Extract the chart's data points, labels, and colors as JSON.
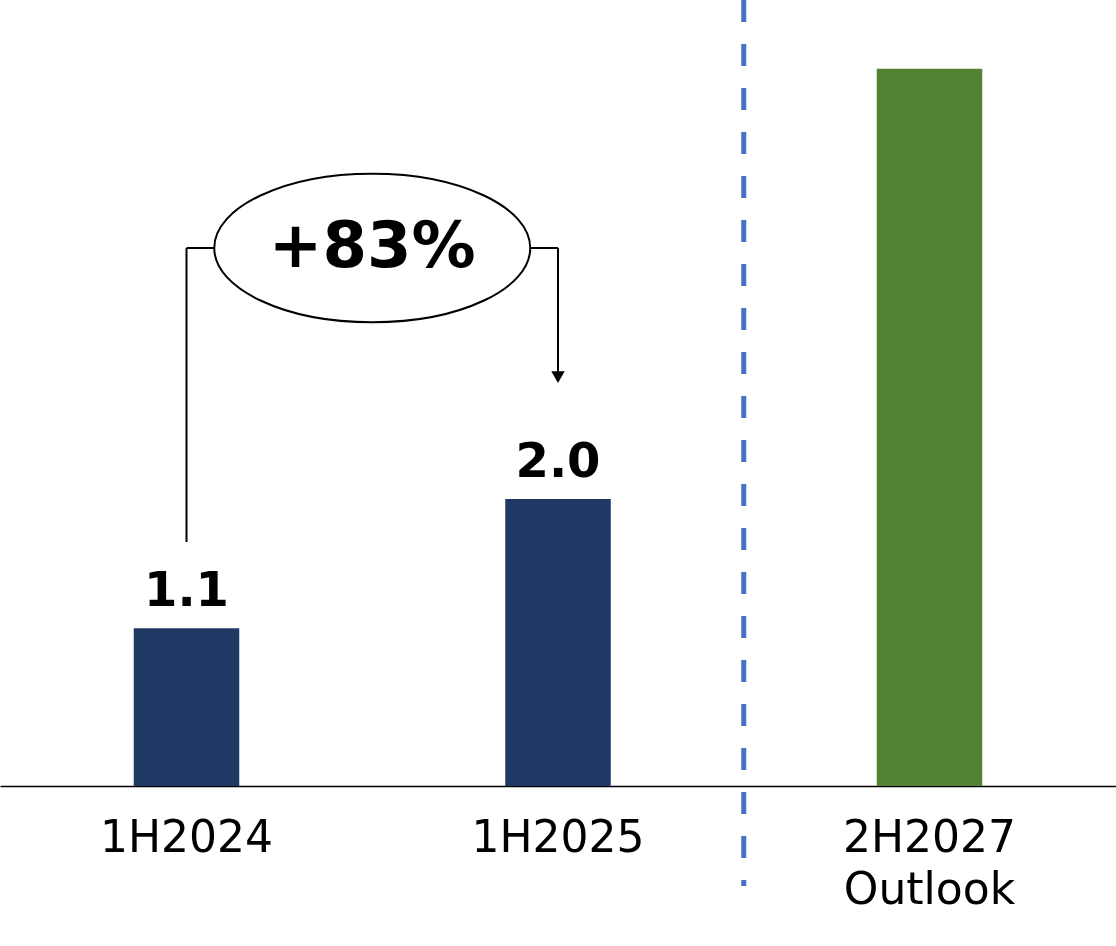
{
  "chart_data": {
    "type": "bar",
    "categories": [
      "1H2024",
      "1H2025",
      "2H2027\nOutlook"
    ],
    "values": [
      1.1,
      2.0,
      5.0
    ],
    "colors": [
      "#203864",
      "#203864",
      "#548235"
    ],
    "value_labels": [
      "1.1",
      "2.0",
      null
    ],
    "annotations": [
      "+83%"
    ],
    "ref_lines": [
      {
        "axis": "x",
        "value": "2H2027\nOutlook",
        "color": "#4472c4",
        "line_style": "dashed"
      }
    ]
  }
}
